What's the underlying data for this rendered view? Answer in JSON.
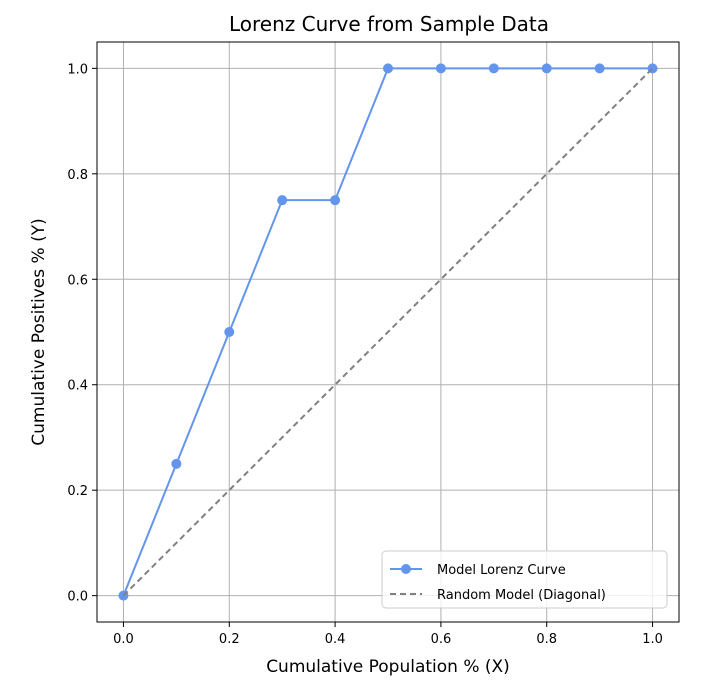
{
  "chart_data": {
    "type": "line",
    "title": "Lorenz Curve from Sample Data",
    "xlabel": "Cumulative Population % (X)",
    "ylabel": "Cumulative Positives % (Y)",
    "xlim": [
      -0.05,
      1.05
    ],
    "ylim": [
      -0.05,
      1.05
    ],
    "grid": true,
    "legend_location": "lower-right",
    "x_ticks": [
      0.0,
      0.2,
      0.4,
      0.6,
      0.8,
      1.0
    ],
    "x_tick_labels": [
      "0.0",
      "0.2",
      "0.4",
      "0.6",
      "0.8",
      "1.0"
    ],
    "y_ticks": [
      0.0,
      0.2,
      0.4,
      0.6,
      0.8,
      1.0
    ],
    "y_tick_labels": [
      "0.0",
      "0.2",
      "0.4",
      "0.6",
      "0.8",
      "1.0"
    ],
    "series": [
      {
        "name": "Model Lorenz Curve",
        "color": "#6495ED",
        "style": "solid",
        "marker": "circle",
        "x": [
          0.0,
          0.1,
          0.2,
          0.3,
          0.4,
          0.5,
          0.6,
          0.7,
          0.8,
          0.9,
          1.0
        ],
        "y": [
          0.0,
          0.25,
          0.5,
          0.75,
          0.75,
          1.0,
          1.0,
          1.0,
          1.0,
          1.0,
          1.0
        ]
      },
      {
        "name": "Random Model (Diagonal)",
        "color": "#808080",
        "style": "dashed",
        "marker": "none",
        "x": [
          0.0,
          1.0
        ],
        "y": [
          0.0,
          1.0
        ]
      }
    ]
  }
}
